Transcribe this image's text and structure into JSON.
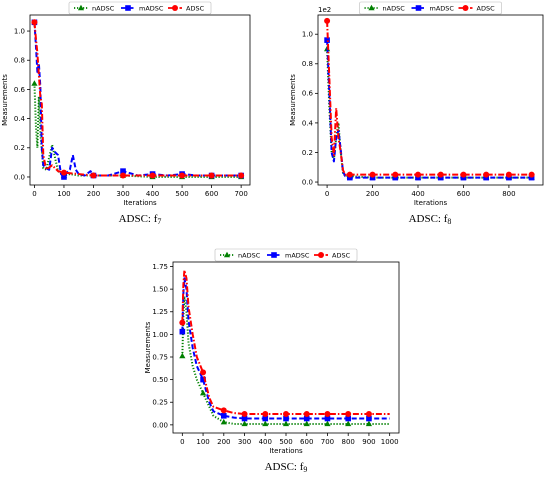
{
  "colors": {
    "nADSC": "#008000",
    "mADSC": "#0000ff",
    "ADSC": "#ff0000"
  },
  "chart_data": [
    {
      "type": "line",
      "caption": "ADSC: f",
      "caption_sub": "7",
      "xlabel": "Iterations",
      "ylabel": "Measurements",
      "exponent_label": "",
      "xlim": [
        -15,
        730
      ],
      "ylim": [
        -0.055,
        1.11
      ],
      "xticks": [
        0,
        100,
        200,
        300,
        400,
        500,
        600,
        700
      ],
      "yticks": [
        0.0,
        0.2,
        0.4,
        0.6,
        0.8,
        1.0
      ],
      "ytick_labels": [
        "0.0",
        "0.2",
        "0.4",
        "0.6",
        "0.8",
        "1.0"
      ],
      "legend": [
        "nADSC",
        "mADSC",
        "ADSC"
      ],
      "grid": false,
      "series": [
        {
          "name": "nADSC",
          "style": "dotted",
          "x": [
            0,
            5,
            10,
            15,
            20,
            30,
            40,
            60,
            80,
            100,
            120,
            150,
            200,
            300,
            400,
            500,
            600,
            700
          ],
          "y": [
            0.64,
            0.35,
            0.2,
            0.55,
            0.3,
            0.06,
            0.05,
            0.22,
            0.04,
            0.01,
            0.02,
            0.01,
            0.01,
            0.01,
            0.0,
            0.0,
            0.0,
            0.0
          ],
          "marker_x": [
            0,
            100,
            200,
            300,
            400,
            500,
            600,
            700
          ],
          "marker_y": [
            0.64,
            0.01,
            0.01,
            0.01,
            0.0,
            0.0,
            0.0,
            0.0
          ]
        },
        {
          "name": "mADSC",
          "style": "dashed",
          "x": [
            0,
            5,
            10,
            15,
            20,
            25,
            30,
            40,
            50,
            60,
            70,
            80,
            90,
            100,
            110,
            120,
            130,
            140,
            150,
            170,
            190,
            200,
            250,
            300,
            350,
            400,
            450,
            500,
            550,
            600,
            650,
            700
          ],
          "y": [
            1.06,
            0.9,
            0.72,
            0.78,
            0.62,
            0.2,
            0.08,
            0.06,
            0.05,
            0.2,
            0.17,
            0.15,
            0.02,
            0.0,
            0.03,
            0.05,
            0.15,
            0.05,
            0.02,
            0.01,
            0.04,
            0.01,
            0.01,
            0.04,
            0.01,
            0.02,
            0.01,
            0.02,
            0.01,
            0.01,
            0.01,
            0.01
          ],
          "marker_x": [
            0,
            100,
            200,
            300,
            400,
            500,
            600,
            700
          ],
          "marker_y": [
            1.06,
            0.0,
            0.01,
            0.04,
            0.02,
            0.02,
            0.01,
            0.01
          ]
        },
        {
          "name": "ADSC",
          "style": "dashdot",
          "x": [
            0,
            5,
            10,
            15,
            20,
            25,
            30,
            40,
            60,
            80,
            100,
            150,
            200,
            300,
            400,
            500,
            600,
            700
          ],
          "y": [
            1.06,
            0.95,
            0.85,
            0.7,
            0.55,
            0.5,
            0.15,
            0.05,
            0.08,
            0.04,
            0.03,
            0.02,
            0.01,
            0.01,
            0.01,
            0.01,
            0.01,
            0.01
          ],
          "marker_x": [
            0,
            100,
            200,
            300,
            400,
            500,
            600,
            700
          ],
          "marker_y": [
            1.06,
            0.03,
            0.01,
            0.01,
            0.01,
            0.01,
            0.01,
            0.01
          ]
        }
      ]
    },
    {
      "type": "line",
      "caption": "ADSC: f",
      "caption_sub": "8",
      "xlabel": "Iterations",
      "ylabel": "Measurements",
      "exponent_label": "1e2",
      "xlim": [
        -40,
        950
      ],
      "ylim": [
        -0.02,
        1.13
      ],
      "xticks": [
        0,
        200,
        400,
        600,
        800
      ],
      "yticks": [
        0.0,
        0.2,
        0.4,
        0.6,
        0.8,
        1.0
      ],
      "ytick_labels": [
        "0.0",
        "0.2",
        "0.4",
        "0.6",
        "0.8",
        "1.0"
      ],
      "legend": [
        "nADSC",
        "mADSC",
        "ADSC"
      ],
      "grid": false,
      "series": [
        {
          "name": "nADSC",
          "style": "dotted",
          "x": [
            0,
            10,
            20,
            30,
            40,
            50,
            60,
            70,
            80,
            100,
            200,
            300,
            400,
            500,
            600,
            700,
            800,
            900
          ],
          "y": [
            0.9,
            0.5,
            0.2,
            0.15,
            0.3,
            0.4,
            0.2,
            0.06,
            0.04,
            0.04,
            0.03,
            0.03,
            0.03,
            0.03,
            0.03,
            0.03,
            0.03,
            0.03
          ],
          "marker_x": [
            0,
            100,
            200,
            300,
            400,
            500,
            600,
            700,
            800,
            900
          ],
          "marker_y": [
            0.9,
            0.04,
            0.03,
            0.03,
            0.03,
            0.03,
            0.03,
            0.03,
            0.03,
            0.03
          ]
        },
        {
          "name": "mADSC",
          "style": "dashed",
          "x": [
            0,
            10,
            20,
            30,
            40,
            50,
            60,
            70,
            80,
            100,
            200,
            300,
            400,
            500,
            600,
            700,
            800,
            900
          ],
          "y": [
            0.96,
            0.6,
            0.2,
            0.14,
            0.3,
            0.35,
            0.22,
            0.07,
            0.04,
            0.03,
            0.03,
            0.03,
            0.03,
            0.03,
            0.03,
            0.03,
            0.03,
            0.03
          ],
          "marker_x": [
            0,
            100,
            200,
            300,
            400,
            500,
            600,
            700,
            800,
            900
          ],
          "marker_y": [
            0.96,
            0.03,
            0.03,
            0.03,
            0.03,
            0.03,
            0.03,
            0.03,
            0.03,
            0.03
          ]
        },
        {
          "name": "ADSC",
          "style": "dashdot",
          "x": [
            0,
            10,
            20,
            30,
            40,
            50,
            60,
            70,
            80,
            100,
            200,
            300,
            400,
            500,
            600,
            700,
            800,
            900
          ],
          "y": [
            1.09,
            0.7,
            0.3,
            0.18,
            0.5,
            0.3,
            0.2,
            0.08,
            0.05,
            0.05,
            0.05,
            0.05,
            0.05,
            0.05,
            0.05,
            0.05,
            0.05,
            0.05
          ],
          "marker_x": [
            0,
            100,
            200,
            300,
            400,
            500,
            600,
            700,
            800,
            900
          ],
          "marker_y": [
            1.09,
            0.05,
            0.05,
            0.05,
            0.05,
            0.05,
            0.05,
            0.05,
            0.05,
            0.05
          ]
        }
      ]
    },
    {
      "type": "line",
      "caption": "ADSC: f",
      "caption_sub": "9",
      "xlabel": "Iterations",
      "ylabel": "Measurements",
      "exponent_label": "",
      "xlim": [
        -45,
        1045
      ],
      "ylim": [
        -0.09,
        1.8
      ],
      "xticks": [
        0,
        100,
        200,
        300,
        400,
        500,
        600,
        700,
        800,
        900,
        1000
      ],
      "yticks": [
        0.0,
        0.25,
        0.5,
        0.75,
        1.0,
        1.25,
        1.5,
        1.75
      ],
      "ytick_labels": [
        "0.00",
        "0.25",
        "0.50",
        "0.75",
        "1.00",
        "1.25",
        "1.50",
        "1.75"
      ],
      "legend": [
        "nADSC",
        "mADSC",
        "ADSC"
      ],
      "grid": false,
      "series": [
        {
          "name": "nADSC",
          "style": "dotted",
          "x": [
            0,
            5,
            10,
            20,
            30,
            50,
            70,
            100,
            130,
            150,
            200,
            250,
            300,
            400,
            500,
            600,
            700,
            800,
            900,
            1000
          ],
          "y": [
            0.76,
            1.2,
            1.42,
            1.25,
            0.9,
            0.65,
            0.5,
            0.35,
            0.2,
            0.1,
            0.03,
            0.01,
            0.01,
            0.01,
            0.01,
            0.01,
            0.01,
            0.01,
            0.01,
            0.01
          ],
          "marker_x": [
            0,
            100,
            200,
            300,
            400,
            500,
            600,
            700,
            800,
            900
          ],
          "marker_y": [
            0.76,
            0.35,
            0.03,
            0.01,
            0.01,
            0.01,
            0.01,
            0.01,
            0.01,
            0.01
          ]
        },
        {
          "name": "mADSC",
          "style": "dashed",
          "x": [
            0,
            5,
            10,
            20,
            30,
            50,
            70,
            100,
            130,
            150,
            200,
            250,
            300,
            400,
            500,
            600,
            700,
            800,
            900,
            1000
          ],
          "y": [
            1.03,
            1.45,
            1.62,
            1.5,
            1.15,
            0.85,
            0.65,
            0.5,
            0.25,
            0.15,
            0.1,
            0.08,
            0.07,
            0.07,
            0.07,
            0.07,
            0.07,
            0.07,
            0.07,
            0.07
          ],
          "marker_x": [
            0,
            100,
            200,
            300,
            400,
            500,
            600,
            700,
            800,
            900
          ],
          "marker_y": [
            1.03,
            0.5,
            0.1,
            0.07,
            0.07,
            0.07,
            0.07,
            0.07,
            0.07,
            0.07
          ]
        },
        {
          "name": "ADSC",
          "style": "dashdot",
          "x": [
            0,
            5,
            10,
            20,
            30,
            50,
            70,
            100,
            130,
            150,
            200,
            250,
            300,
            400,
            500,
            600,
            700,
            800,
            900,
            1000
          ],
          "y": [
            1.13,
            1.55,
            1.71,
            1.62,
            1.3,
            1.0,
            0.75,
            0.58,
            0.3,
            0.2,
            0.16,
            0.13,
            0.12,
            0.12,
            0.12,
            0.12,
            0.12,
            0.12,
            0.12,
            0.12
          ],
          "marker_x": [
            0,
            100,
            200,
            300,
            400,
            500,
            600,
            700,
            800,
            900
          ],
          "marker_y": [
            1.13,
            0.58,
            0.16,
            0.12,
            0.12,
            0.12,
            0.12,
            0.12,
            0.12,
            0.12
          ]
        }
      ]
    }
  ]
}
